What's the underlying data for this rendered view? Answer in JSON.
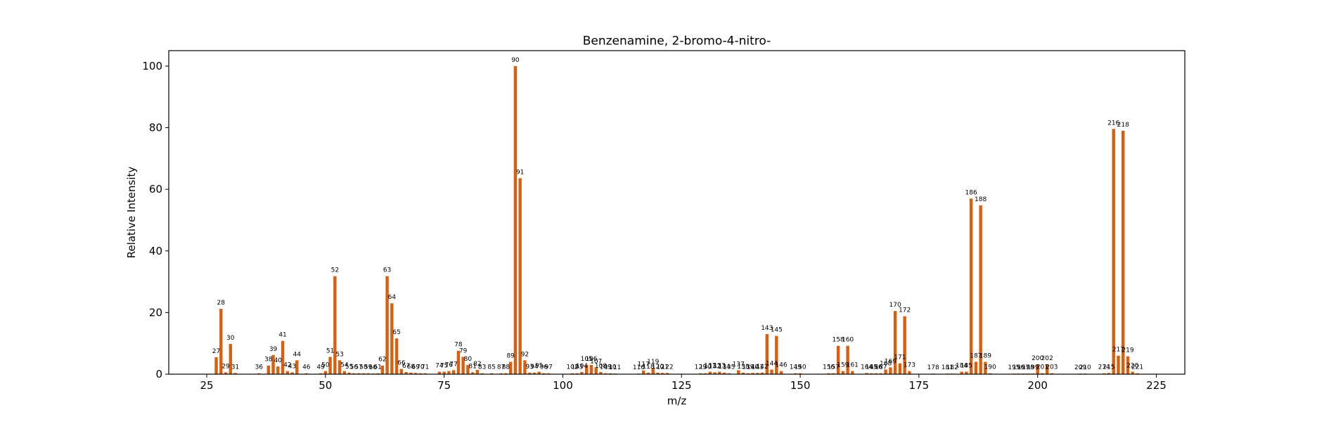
{
  "chart_data": {
    "type": "bar",
    "title": "Benzenamine, 2-bromo-4-nitro-",
    "xlabel": "m/z",
    "ylabel": "Relative Intensity",
    "xlim": [
      17,
      231
    ],
    "ylim": [
      0,
      105
    ],
    "xticks": [
      "25",
      "50",
      "75",
      "100",
      "125",
      "150",
      "175",
      "200",
      "225"
    ],
    "yticks": [
      "0",
      "20",
      "40",
      "60",
      "80",
      "100"
    ],
    "bar_color": "#d95f0e",
    "grid": false,
    "x": [
      27,
      28,
      29,
      30,
      31,
      36,
      38,
      39,
      40,
      41,
      42,
      43,
      44,
      46,
      49,
      50,
      51,
      52,
      53,
      54,
      55,
      56,
      57,
      58,
      59,
      60,
      61,
      62,
      63,
      64,
      65,
      66,
      67,
      68,
      69,
      70,
      71,
      74,
      75,
      76,
      77,
      78,
      79,
      80,
      81,
      82,
      83,
      85,
      87,
      88,
      89,
      90,
      91,
      92,
      93,
      94,
      95,
      96,
      97,
      102,
      103,
      104,
      105,
      106,
      107,
      108,
      109,
      110,
      111,
      116,
      117,
      118,
      119,
      120,
      121,
      122,
      129,
      130,
      131,
      132,
      133,
      134,
      135,
      137,
      138,
      139,
      140,
      141,
      142,
      143,
      144,
      145,
      146,
      149,
      150,
      156,
      157,
      158,
      159,
      160,
      161,
      164,
      165,
      166,
      167,
      168,
      169,
      170,
      171,
      172,
      173,
      178,
      181,
      182,
      184,
      185,
      186,
      187,
      188,
      189,
      190,
      195,
      196,
      197,
      198,
      199,
      200,
      201,
      202,
      203,
      209,
      210,
      214,
      215,
      216,
      217,
      218,
      219,
      220,
      221
    ],
    "values": [
      5.5,
      21.2,
      0.6,
      9.8,
      0.4,
      0.3,
      2.8,
      6.2,
      2.5,
      10.8,
      1.0,
      0.6,
      4.5,
      0.3,
      0.3,
      1.0,
      5.6,
      31.8,
      4.5,
      1.0,
      0.5,
      0.3,
      0.3,
      0.3,
      0.3,
      0.2,
      0.3,
      2.8,
      31.8,
      23.0,
      11.6,
      1.7,
      0.7,
      0.5,
      0.4,
      0.3,
      0.3,
      0.8,
      0.8,
      1.0,
      1.3,
      7.6,
      5.6,
      3.0,
      0.6,
      1.4,
      0.3,
      0.3,
      0.3,
      0.3,
      4.0,
      100,
      63.6,
      4.5,
      0.5,
      0.5,
      0.8,
      0.3,
      0.3,
      0.3,
      0.3,
      0.7,
      3.0,
      3.0,
      2.2,
      0.7,
      0.3,
      0.3,
      0.2,
      0.2,
      1.2,
      0.5,
      2.0,
      0.5,
      0.4,
      0.4,
      0.3,
      0.3,
      0.8,
      0.6,
      0.8,
      0.5,
      0.3,
      1.3,
      0.5,
      0.3,
      0.4,
      0.4,
      0.5,
      13.0,
      1.5,
      12.4,
      1.0,
      0.3,
      0.3,
      0.3,
      0.3,
      9.2,
      1.0,
      9.2,
      1.0,
      0.4,
      0.3,
      0.3,
      0.3,
      1.5,
      2.2,
      20.5,
      3.5,
      18.8,
      1.0,
      0.2,
      0.2,
      0.2,
      0.8,
      0.8,
      57.0,
      4.0,
      54.8,
      4.0,
      0.3,
      0.2,
      0.2,
      0.2,
      0.2,
      0.2,
      3.2,
      0.3,
      3.2,
      0.3,
      0.2,
      0.2,
      0.3,
      0.4,
      79.6,
      6.0,
      79.0,
      5.8,
      0.8,
      0.3
    ]
  }
}
